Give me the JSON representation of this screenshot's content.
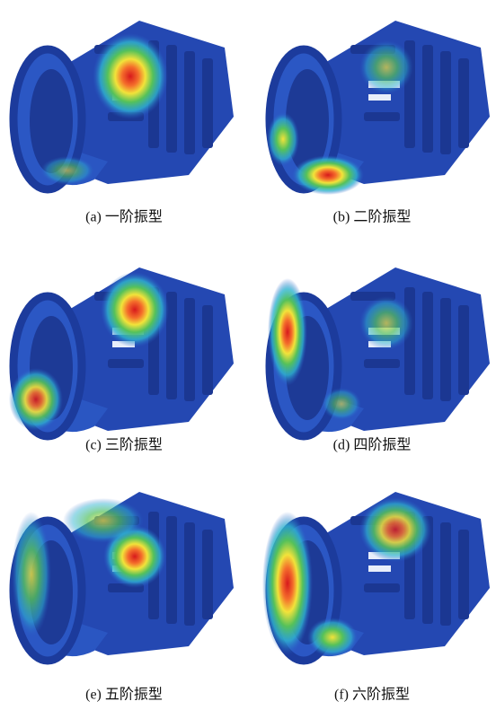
{
  "panels": [
    {
      "caption": "(a) 一阶振型"
    },
    {
      "caption": "(b) 二阶振型"
    },
    {
      "caption": "(c) 三阶振型"
    },
    {
      "caption": "(d) 四阶振型"
    },
    {
      "caption": "(e) 五阶振型"
    },
    {
      "caption": "(f) 六阶振型"
    }
  ]
}
